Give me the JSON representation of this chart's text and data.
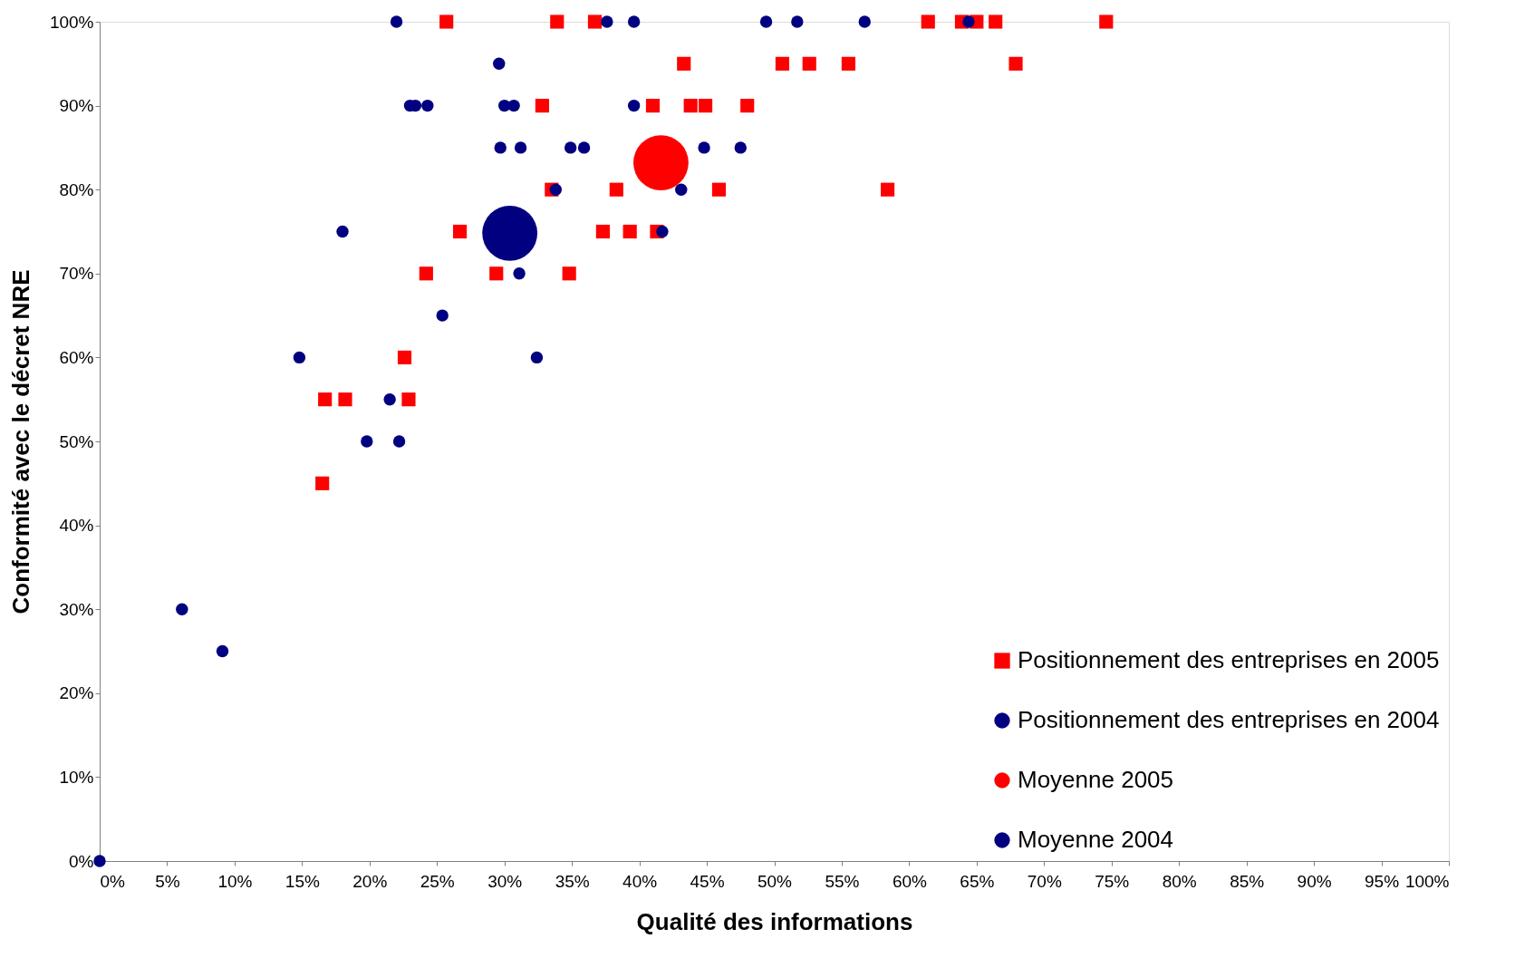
{
  "chart_data": {
    "type": "scatter",
    "xlabel": "Qualité des informations",
    "ylabel": "Conformité avec le décret NRE",
    "xlim": [
      0,
      100
    ],
    "ylim": [
      0,
      100
    ],
    "xticks": [
      {
        "value": 0,
        "label": "0%"
      },
      {
        "value": 5,
        "label": "5%"
      },
      {
        "value": 10,
        "label": "10%"
      },
      {
        "value": 15,
        "label": "15%"
      },
      {
        "value": 20,
        "label": "20%"
      },
      {
        "value": 25,
        "label": "25%"
      },
      {
        "value": 30,
        "label": "30%"
      },
      {
        "value": 35,
        "label": "35%"
      },
      {
        "value": 40,
        "label": "40%"
      },
      {
        "value": 45,
        "label": "45%"
      },
      {
        "value": 50,
        "label": "50%"
      },
      {
        "value": 55,
        "label": "55%"
      },
      {
        "value": 60,
        "label": "60%"
      },
      {
        "value": 65,
        "label": "65%"
      },
      {
        "value": 70,
        "label": "70%"
      },
      {
        "value": 75,
        "label": "75%"
      },
      {
        "value": 80,
        "label": "80%"
      },
      {
        "value": 85,
        "label": "85%"
      },
      {
        "value": 90,
        "label": "90%"
      },
      {
        "value": 95,
        "label": "95%"
      },
      {
        "value": 100,
        "label": "100%"
      }
    ],
    "yticks": [
      {
        "value": 0,
        "label": "0%"
      },
      {
        "value": 10,
        "label": "10%"
      },
      {
        "value": 20,
        "label": "20%"
      },
      {
        "value": 30,
        "label": "30%"
      },
      {
        "value": 40,
        "label": "40%"
      },
      {
        "value": 50,
        "label": "50%"
      },
      {
        "value": 60,
        "label": "60%"
      },
      {
        "value": 70,
        "label": "70%"
      },
      {
        "value": 80,
        "label": "80%"
      },
      {
        "value": 90,
        "label": "90%"
      },
      {
        "value": 100,
        "label": "100%"
      }
    ],
    "grid": false,
    "legend": "bottom right",
    "series": [
      {
        "name": "Positionnement des entreprises en 2005",
        "color": "#ff0000",
        "marker": "square",
        "x": [
          25.7,
          33.9,
          36.7,
          61.4,
          63.9,
          65.0,
          66.4,
          74.6,
          43.3,
          50.6,
          52.6,
          55.5,
          67.9,
          32.8,
          41.0,
          43.8,
          44.9,
          48.0,
          33.5,
          38.3,
          45.9,
          58.4,
          26.7,
          37.3,
          39.3,
          41.3,
          24.2,
          29.4,
          34.8,
          22.6,
          16.7,
          18.2,
          22.9,
          16.5
        ],
        "values": [
          100,
          100,
          100,
          100,
          100,
          100,
          100,
          100,
          95,
          95,
          95,
          95,
          95,
          90,
          90,
          90,
          90,
          90,
          80,
          80,
          80,
          80,
          75,
          75,
          75,
          75,
          70,
          70,
          70,
          60,
          55,
          55,
          55,
          45
        ]
      },
      {
        "name": "Positionnement des entreprises en 2004",
        "color": "#000080",
        "marker": "circle",
        "x": [
          22.0,
          37.6,
          39.6,
          49.4,
          51.7,
          56.7,
          64.4,
          29.6,
          23.0,
          23.4,
          24.3,
          30.0,
          30.7,
          39.6,
          29.7,
          31.2,
          34.9,
          35.9,
          44.8,
          47.5,
          33.8,
          43.1,
          18.0,
          41.7,
          31.1,
          25.4,
          14.8,
          32.4,
          21.5,
          19.8,
          22.2,
          6.1,
          9.1,
          0
        ],
        "values": [
          100,
          100,
          100,
          100,
          100,
          100,
          100,
          95,
          90,
          90,
          90,
          90,
          90,
          90,
          85,
          85,
          85,
          85,
          85,
          85,
          80,
          80,
          75,
          75,
          70,
          65,
          60,
          60,
          55,
          50,
          50,
          30,
          25,
          0
        ]
      },
      {
        "name": "Moyenne 2005",
        "color": "#ff0000",
        "marker": "circle",
        "type": "bubble",
        "x": [
          41.6
        ],
        "values": [
          83.2
        ],
        "sizes": [
          1
        ]
      },
      {
        "name": "Moyenne 2004",
        "color": "#000080",
        "marker": "circle",
        "type": "bubble",
        "x": [
          30.4
        ],
        "values": [
          74.8
        ],
        "sizes": [
          1
        ]
      }
    ]
  }
}
